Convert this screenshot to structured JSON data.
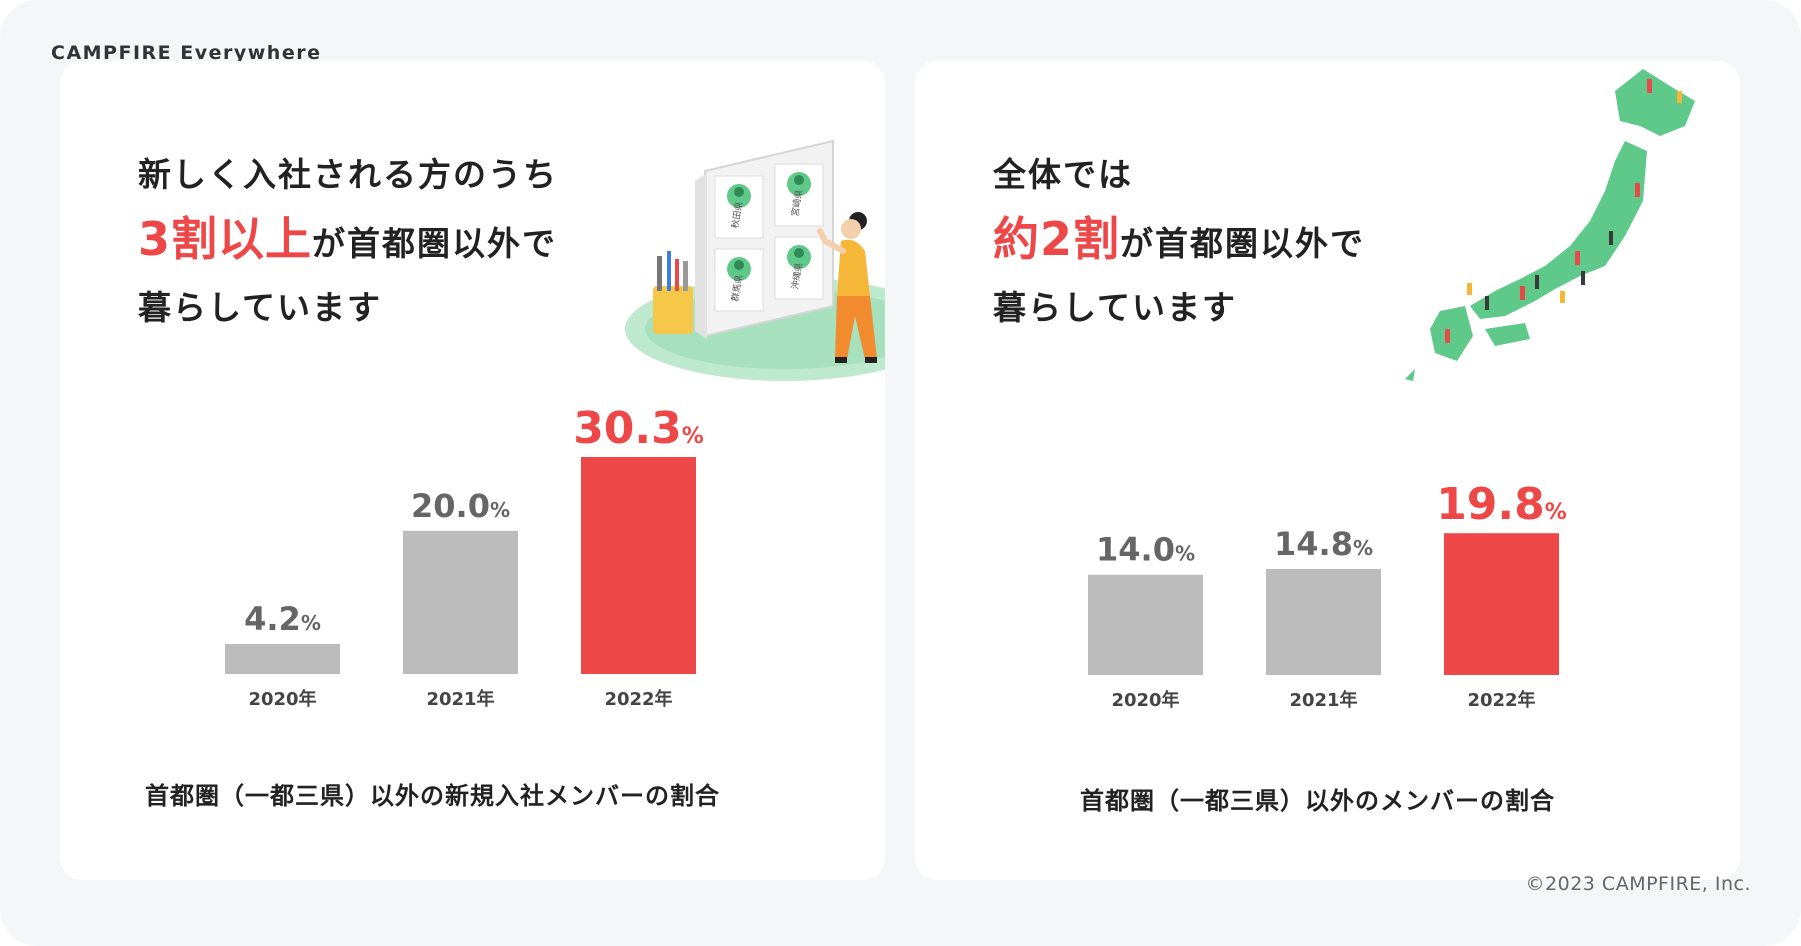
{
  "brand": "CAMPFIRE Everywhere",
  "copyright": "©2023 CAMPFIRE, Inc.",
  "colors": {
    "accent": "#ee4748",
    "bar_gray": "#bcbcbc",
    "value_gray": "#666666",
    "green": "#5fc98a"
  },
  "left_card": {
    "headline_line1": "新しく入社される方のうち",
    "headline_accent": "3割以上",
    "headline_line2_rest": "が首都圏以外で",
    "headline_line3": "暮らしています",
    "caption": "首都圏（一都三県）以外の新規入社メンバーの割合",
    "illustration_labels": [
      "秋田県",
      "宮崎県",
      "群馬県",
      "沖縄県"
    ]
  },
  "right_card": {
    "headline_line1": "全体では",
    "headline_accent": "約2割",
    "headline_line2_rest": "が首都圏以外で",
    "headline_line3": "暮らしています",
    "caption": "首都圏（一都三県）以外のメンバーの割合"
  },
  "chart_data": [
    {
      "type": "bar",
      "categories": [
        "2020年",
        "2021年",
        "2022年"
      ],
      "values": [
        4.2,
        20.0,
        30.3
      ],
      "value_labels": [
        "4.2",
        "20.0",
        "30.3"
      ],
      "unit": "%",
      "highlight_index": 2,
      "ylim": [
        0,
        30.3
      ],
      "grid": false,
      "title": "首都圏（一都三県）以外の新規入社メンバーの割合"
    },
    {
      "type": "bar",
      "categories": [
        "2020年",
        "2021年",
        "2022年"
      ],
      "values": [
        14.0,
        14.8,
        19.8
      ],
      "value_labels": [
        "14.0",
        "14.8",
        "19.8"
      ],
      "unit": "%",
      "highlight_index": 2,
      "ylim": [
        0,
        30.3
      ],
      "grid": false,
      "title": "首都圏（一都三県）以外のメンバーの割合"
    }
  ]
}
